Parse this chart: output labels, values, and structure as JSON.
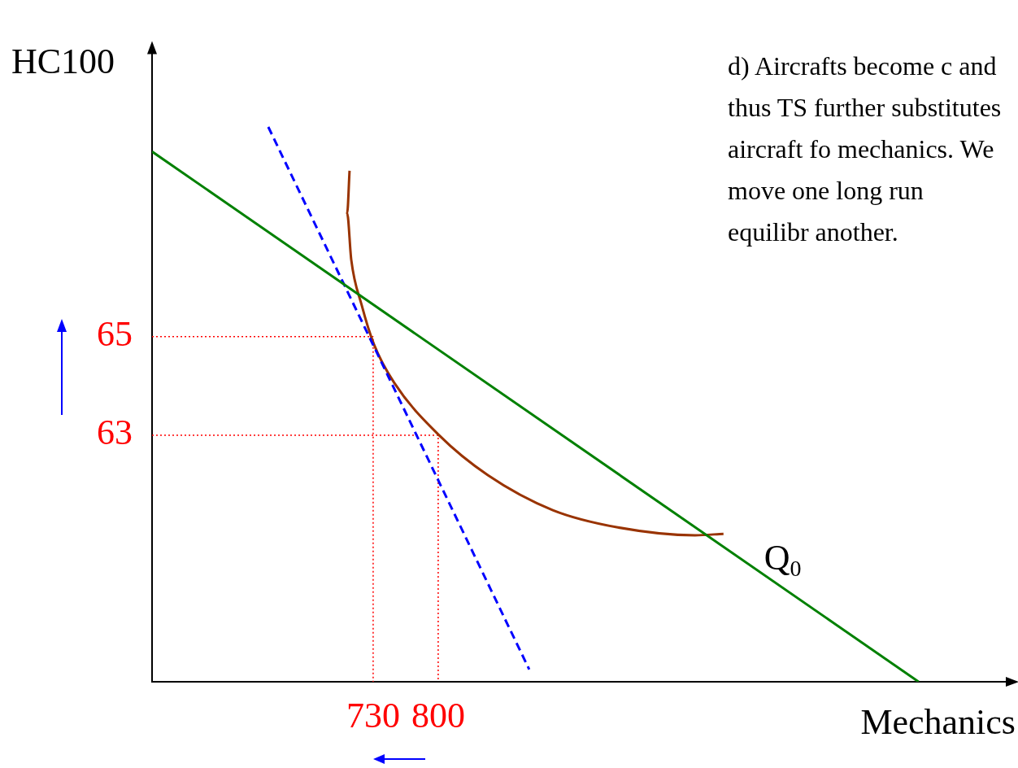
{
  "chart_data": {
    "type": "line",
    "xlabel": "Mechanics",
    "ylabel": "HC100",
    "xlim": [
      492,
      1418
    ],
    "ylim": [
      58,
      70.86
    ],
    "xticks": [
      730,
      800
    ],
    "yticks": [
      63,
      65
    ],
    "grid": false,
    "legend": false,
    "marker": "none",
    "annotations": [
      "d) Aircrafts become c and thus TS further substitutes aircraft fo mechanics. We move one long run equilibr another."
    ],
    "series": [
      {
        "color": "#008000",
        "x": [
          492,
          1317.1
        ],
        "values": [
          68.75,
          58
        ],
        "line_style": "solid"
      },
      {
        "color": "#0000ff",
        "x": [
          617.1,
          898
        ],
        "values": [
          69.25,
          58.25
        ],
        "line_style": "dashed"
      },
      {
        "name": "Q$_{0}$",
        "color": "#993300",
        "x": [
          704.6,
          702,
          706.4,
          717.75,
          730.9,
          752.75,
          800.9,
          853.4,
          923.4,
          993.4,
          1076.5,
          1107.1
        ],
        "values": [
          68.36,
          67.5,
          66.56,
          65.63,
          64.84,
          64.06,
          63,
          62.19,
          61.48,
          61.13,
          60.97,
          61.0
        ],
        "line_style": "solid"
      },
      {
        "color": "#ff0000",
        "x": [
          492,
          730,
          730
        ],
        "values": [
          65,
          65,
          58
        ],
        "line_style": "dotted"
      },
      {
        "color": "#ff0000",
        "x": [
          492,
          800,
          800
        ],
        "values": [
          63,
          63,
          58
        ],
        "line_style": "dotted"
      }
    ]
  }
}
